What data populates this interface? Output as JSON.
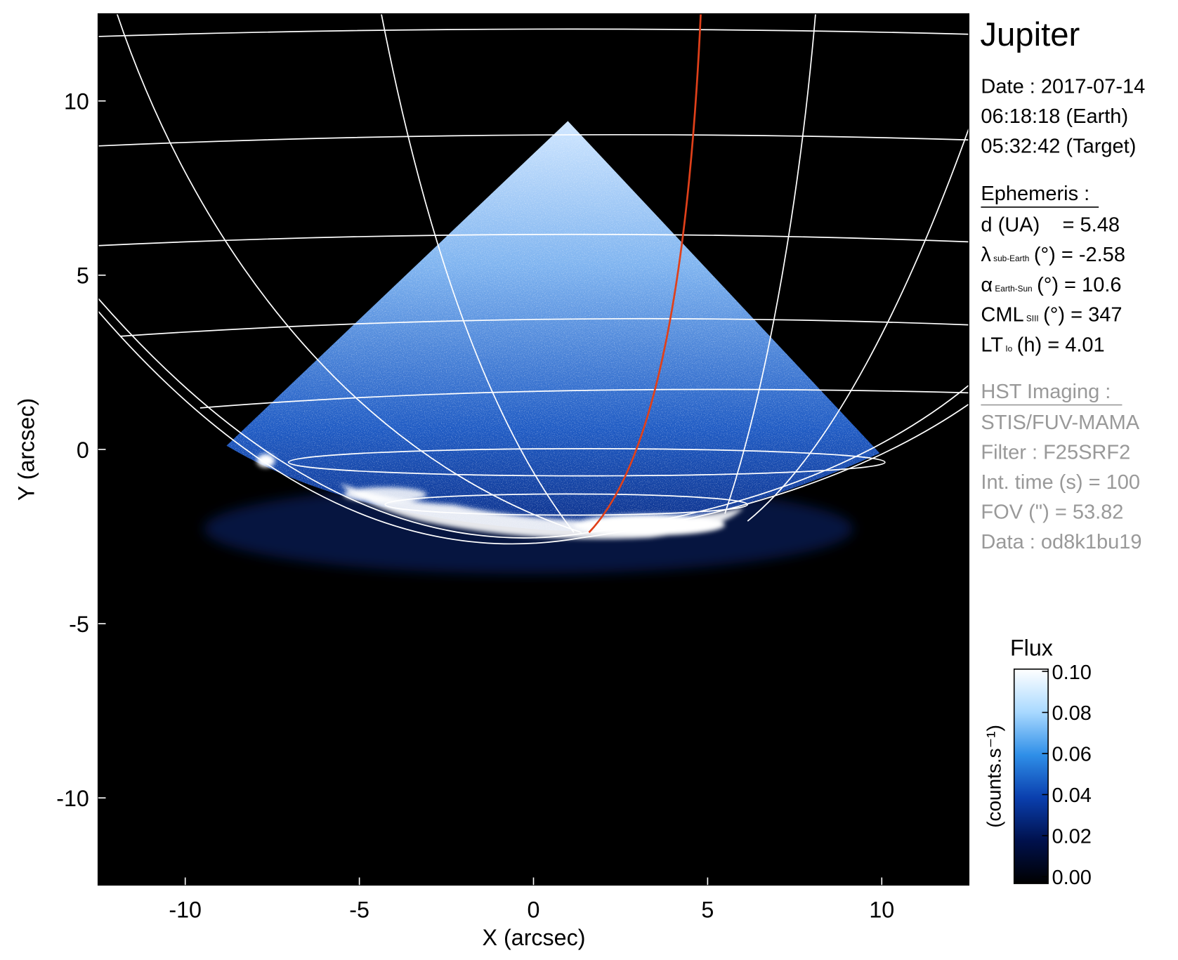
{
  "chart_data": {
    "type": "image",
    "title": "Jupiter",
    "xlabel": "X (arcsec)",
    "ylabel": "Y (arcsec)",
    "xlim": [
      -12.5,
      12.5
    ],
    "ylim": [
      -12.5,
      12.5
    ],
    "xticks": [
      -10,
      -5,
      0,
      5,
      10
    ],
    "yticks": [
      -10,
      -5,
      0,
      5,
      10
    ],
    "info_lines": [
      "Date : 2017-07-14",
      "06:18:18 (Earth)",
      "05:32:42 (Target)"
    ],
    "ephemeris_heading": "Ephemeris :",
    "ephemeris": [
      {
        "main": "d (UA)    = 5.48"
      },
      {
        "main": "λ",
        "sub": "sub-Earth",
        "rest": "(°) = -2.58"
      },
      {
        "main": "α",
        "sub": "Earth-Sun",
        "rest": "(°) = 10.6"
      },
      {
        "main": "CML",
        "sub": "SIII",
        "rest": "(°) = 347"
      },
      {
        "main": "LT",
        "sub": "Io",
        "rest": "(h) = 4.01"
      }
    ],
    "imaging_heading": "HST Imaging :",
    "imaging": [
      "STIS/FUV-MAMA",
      "Filter : F25SRF2",
      "Int. time (s) = 100",
      "FOV (\") = 53.82",
      "Data : od8k1bu19"
    ],
    "colorbar": {
      "title": "Flux",
      "label": "(counts.s⁻¹)",
      "clim": [
        0,
        0.1
      ],
      "colormap": [
        "#000000",
        "#00114d",
        "#0a3fae",
        "#2f8fe8",
        "#a9d9ff",
        "#ffffff"
      ],
      "ticks": [
        {
          "value": 0,
          "label": "0.00"
        },
        {
          "value": 0.02,
          "label": "0.02"
        },
        {
          "value": 0.04,
          "label": "0.04"
        },
        {
          "value": 0.06,
          "label": "0.06"
        },
        {
          "value": 0.08,
          "label": "0.08"
        },
        {
          "value": 0.1,
          "label": "0.10"
        }
      ]
    }
  }
}
